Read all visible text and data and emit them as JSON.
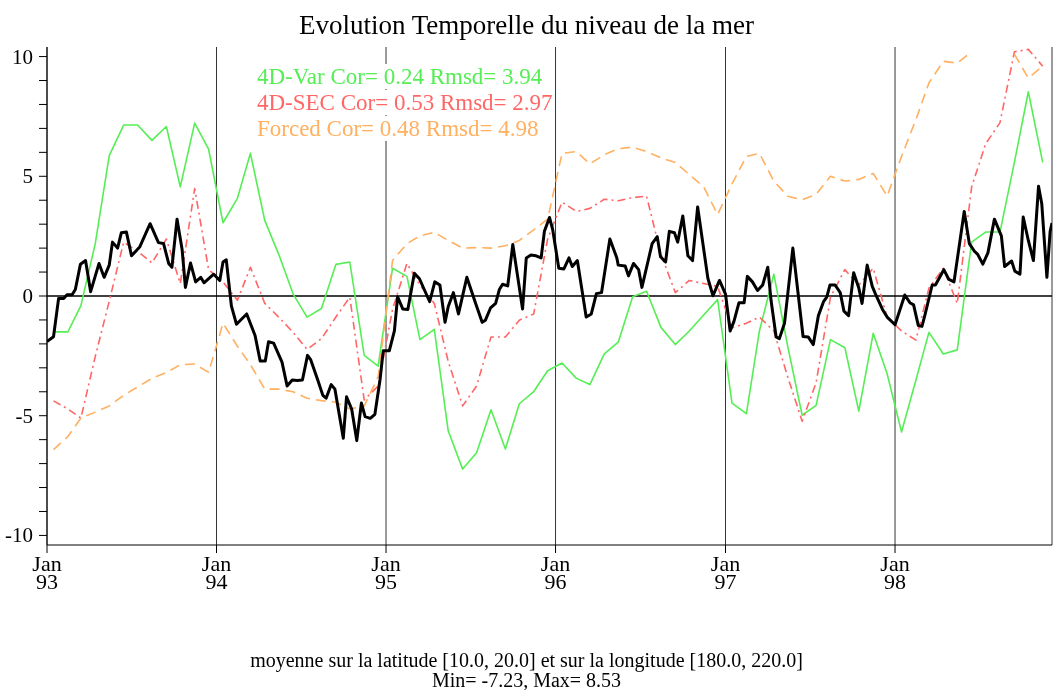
{
  "chart_data": {
    "type": "line",
    "title": "Evolution Temporelle du niveau de la mer",
    "annotations": [
      "moyenne sur la latitude [10.0, 20.0] et sur la longitude [180.0, 220.0]",
      "Min= -7.23, Max= 8.53"
    ],
    "xlim": [
      "1993-01-01",
      "1998-12-05"
    ],
    "xticks": [
      {
        "value": "1993-01-01",
        "label": "Jan 93"
      },
      {
        "value": "1994-01-01",
        "label": "Jan 94"
      },
      {
        "value": "1995-01-01",
        "label": "Jan 95"
      },
      {
        "value": "1996-01-01",
        "label": "Jan 96"
      },
      {
        "value": "1997-01-01",
        "label": "Jan 97"
      },
      {
        "value": "1998-01-01",
        "label": "Jan 98"
      }
    ],
    "ylim": [
      -10.4,
      10.4
    ],
    "yticks": [
      {
        "value": -10,
        "label": "-10"
      },
      {
        "value": -9,
        "label": null
      },
      {
        "value": -8,
        "label": null
      },
      {
        "value": -7,
        "label": null
      },
      {
        "value": -6,
        "label": null
      },
      {
        "value": -5,
        "label": "-5"
      },
      {
        "value": -4,
        "label": null
      },
      {
        "value": -3,
        "label": null
      },
      {
        "value": -2,
        "label": null
      },
      {
        "value": -1,
        "label": null
      },
      0,
      {
        "value": 1,
        "label": null
      },
      {
        "value": 2,
        "label": null
      },
      {
        "value": 3,
        "label": null
      },
      {
        "value": 4,
        "label": null
      },
      5,
      {
        "value": 6,
        "label": null
      },
      {
        "value": 7,
        "label": null
      },
      {
        "value": 8,
        "label": null
      },
      {
        "value": 9,
        "label": null
      },
      10
    ],
    "grid": "x",
    "legend": "top",
    "ref_lines": [
      {
        "axis": "y",
        "value": 0,
        "color": "#000000"
      }
    ],
    "x": [
      "1993-01-15",
      "1993-02-15",
      "1993-03-15",
      "1993-04-15",
      "1993-05-15",
      "1993-06-15",
      "1993-07-15",
      "1993-08-15",
      "1993-09-15",
      "1993-10-15",
      "1993-11-15",
      "1993-12-15",
      "1994-01-15",
      "1994-02-15",
      "1994-03-15",
      "1994-04-15",
      "1994-05-15",
      "1994-06-15",
      "1994-07-15",
      "1994-08-15",
      "1994-09-15",
      "1994-10-15",
      "1994-11-15",
      "1994-12-15",
      "1995-01-15",
      "1995-02-15",
      "1995-03-15",
      "1995-04-15",
      "1995-05-15",
      "1995-06-15",
      "1995-07-15",
      "1995-08-15",
      "1995-09-15",
      "1995-10-15",
      "1995-11-15",
      "1995-12-15",
      "1996-01-15",
      "1996-02-15",
      "1996-03-15",
      "1996-04-15",
      "1996-05-15",
      "1996-06-15",
      "1996-07-15",
      "1996-08-15",
      "1996-09-15",
      "1996-10-15",
      "1996-11-15",
      "1996-12-15",
      "1997-01-15",
      "1997-02-15",
      "1997-03-15",
      "1997-04-15",
      "1997-05-15",
      "1997-06-15",
      "1997-07-15",
      "1997-08-15",
      "1997-09-15",
      "1997-10-15",
      "1997-11-15",
      "1997-12-15",
      "1998-01-15",
      "1998-02-15",
      "1998-03-15",
      "1998-04-15",
      "1998-05-15",
      "1998-06-15",
      "1998-07-15",
      "1998-08-15",
      "1998-09-15",
      "1998-10-15",
      "1998-11-15"
    ],
    "series": [
      {
        "name": "4D-Var Cor= 0.24 Rmsd= 3.94",
        "color": "#55ee55",
        "line_style": "solid",
        "values": [
          -1.5,
          -1.5,
          -0.4,
          2.2,
          5.86,
          7.14,
          7.14,
          6.5,
          7.08,
          4.56,
          7.22,
          6.13,
          3.06,
          4.08,
          5.96,
          3.15,
          1.74,
          0.08,
          -0.88,
          -0.52,
          1.32,
          1.42,
          -2.48,
          -2.93,
          1.16,
          0.82,
          -1.82,
          -1.39,
          -5.64,
          -7.23,
          -6.55,
          -4.75,
          -6.39,
          -4.5,
          -3.99,
          -3.12,
          -2.8,
          -3.44,
          -3.7,
          -2.42,
          -1.93,
          -0.03,
          0.2,
          -1.31,
          -2.03,
          -1.46,
          -0.79,
          -0.15,
          -4.47,
          -4.91,
          -1.46,
          0.91,
          -2.1,
          -4.98,
          -4.57,
          -1.82,
          -2.16,
          -4.81,
          -1.56,
          -3.25,
          -5.68,
          -3.51,
          -1.52,
          -2.42,
          -2.25,
          2.25,
          2.67,
          2.67,
          5.58,
          8.53,
          5.58
        ]
      },
      {
        "name": "4D-SEC Cor= 0.53 Rmsd= 2.97",
        "color": "#ff6666",
        "line_style": "dashdot",
        "values": [
          -4.38,
          -4.72,
          -5.1,
          -2.52,
          -0.22,
          2.25,
          1.87,
          1.38,
          2.38,
          0.52,
          4.49,
          1.1,
          0.59,
          -0.18,
          1.2,
          -0.31,
          -0.88,
          -1.52,
          -2.23,
          -1.78,
          -0.88,
          -0.05,
          -4.34,
          -3.76,
          -0.56,
          1.36,
          0.46,
          -0.31,
          -2.74,
          -4.59,
          -3.76,
          -1.71,
          -1.71,
          -1.01,
          -0.75,
          2.38,
          3.92,
          3.53,
          3.66,
          4.04,
          3.98,
          4.11,
          4.17,
          1.74,
          0.14,
          0.65,
          0.52,
          0.4,
          -1.33,
          -1.14,
          -0.88,
          -1.46,
          -3.38,
          -5.23,
          -3.63,
          -0.05,
          1.1,
          0.46,
          1.16,
          -0.88,
          -1.46,
          -1.84,
          0.33,
          1.16,
          -0.31,
          4.56,
          6.35,
          7.24,
          10.2,
          10.3,
          9.6
        ]
      },
      {
        "name": "Forced Cor= 0.48 Rmsd= 4.98",
        "color": "#ffb060",
        "line_style": "dashed",
        "values": [
          -6.42,
          -5.87,
          -5.1,
          -4.85,
          -4.59,
          -4.15,
          -3.8,
          -3.44,
          -3.2,
          -2.87,
          -2.84,
          -3.19,
          -1.14,
          -2.1,
          -2.87,
          -3.89,
          -3.89,
          -4.0,
          -4.27,
          -4.37,
          -4.44,
          -4.72,
          -4.59,
          -3.38,
          1.48,
          2.19,
          2.51,
          2.66,
          2.32,
          2.0,
          2.02,
          2.0,
          2.1,
          2.32,
          2.76,
          3.21,
          5.96,
          6.03,
          5.52,
          5.9,
          6.15,
          6.22,
          6.03,
          5.77,
          5.58,
          5.07,
          4.56,
          3.4,
          4.68,
          5.83,
          5.96,
          4.8,
          4.17,
          4.02,
          4.24,
          5.0,
          4.8,
          4.87,
          5.12,
          4.17,
          5.83,
          7.37,
          8.9,
          9.8,
          9.73,
          10.2,
          null,
          null,
          10.1,
          9.1,
          9.6
        ]
      },
      {
        "color": "#000000",
        "line_style": "solid",
        "x": [
          "1993-01-01",
          "1993-01-15",
          "1993-01-26",
          "1993-02-06",
          "1993-02-13",
          "1993-02-24",
          "1993-03-03",
          "1993-03-14",
          "1993-03-25",
          "1993-04-05",
          "1993-04-23",
          "1993-05-04",
          "1993-05-15",
          "1993-05-22",
          "1993-06-02",
          "1993-06-10",
          "1993-06-21",
          "1993-07-02",
          "1993-07-20",
          "1993-08-11",
          "1993-08-29",
          "1993-09-09",
          "1993-09-20",
          "1993-09-27",
          "1993-10-08",
          "1993-10-19",
          "1993-10-26",
          "1993-11-06",
          "1993-11-17",
          "1993-11-28",
          "1993-12-05",
          "1993-12-26",
          "1994-01-08",
          "1994-01-15",
          "1994-01-22",
          "1994-02-02",
          "1994-02-13",
          "1994-03-07",
          "1994-03-25",
          "1994-04-05",
          "1994-04-16",
          "1994-04-23",
          "1994-05-04",
          "1994-05-22",
          "1994-06-02",
          "1994-06-13",
          "1994-06-24",
          "1994-07-05",
          "1994-07-16",
          "1994-07-23",
          "1994-08-07",
          "1994-08-18",
          "1994-08-25",
          "1994-09-05",
          "1994-09-13",
          "1994-10-01",
          "1994-10-08",
          "1994-10-19",
          "1994-10-30",
          "1994-11-09",
          "1994-11-17",
          "1994-11-28",
          "1994-12-08",
          "1994-12-19",
          "1994-12-26",
          "1995-01-08",
          "1995-01-19",
          "1995-01-26",
          "1995-02-06",
          "1995-02-17",
          "1995-03-03",
          "1995-03-14",
          "1995-04-05",
          "1995-04-16",
          "1995-04-27",
          "1995-05-08",
          "1995-05-15",
          "1995-05-26",
          "1995-06-06",
          "1995-06-24",
          "1995-07-13",
          "1995-07-27",
          "1995-08-03",
          "1995-08-14",
          "1995-08-25",
          "1995-09-02",
          "1995-09-09",
          "1995-09-20",
          "1995-10-01",
          "1995-10-22",
          "1995-10-30",
          "1995-11-09",
          "1995-11-20",
          "1995-12-01",
          "1995-12-08",
          "1995-12-19",
          "1995-12-26",
          "1996-01-08",
          "1996-01-19",
          "1996-01-30",
          "1996-02-06",
          "1996-02-17",
          "1996-03-07",
          "1996-03-18",
          "1996-03-29",
          "1996-04-09",
          "1996-04-27",
          "1996-05-12",
          "1996-05-15",
          "1996-05-30",
          "1996-06-06",
          "1996-06-17",
          "1996-06-28",
          "1996-07-05",
          "1996-07-27",
          "1996-08-07",
          "1996-08-14",
          "1996-08-25",
          "1996-09-02",
          "1996-09-13",
          "1996-09-20",
          "1996-10-01",
          "1996-10-12",
          "1996-10-22",
          "1996-11-02",
          "1996-11-24",
          "1996-12-05",
          "1996-12-19",
          "1997-01-01",
          "1997-01-11",
          "1997-01-19",
          "1997-01-30",
          "1997-02-10",
          "1997-02-17",
          "1997-02-28",
          "1997-03-11",
          "1997-03-22",
          "1997-04-02",
          "1997-04-09",
          "1997-04-20",
          "1997-04-27",
          "1997-05-08",
          "1997-05-26",
          "1997-06-17",
          "1997-06-28",
          "1997-07-09",
          "1997-07-20",
          "1997-07-31",
          "1997-08-07",
          "1997-08-14",
          "1997-08-25",
          "1997-09-05",
          "1997-09-13",
          "1997-09-23",
          "1997-10-04",
          "1997-10-15",
          "1997-10-22",
          "1997-11-02",
          "1997-11-13",
          "1997-11-20",
          "1997-12-05",
          "1997-12-15",
          "1998-01-01",
          "1998-01-22",
          "1998-02-02",
          "1998-02-10",
          "1998-02-20",
          "1998-02-28",
          "1998-03-07",
          "1998-03-22",
          "1998-03-29",
          "1998-04-16",
          "1998-04-27",
          "1998-05-08",
          "1998-05-30",
          "1998-06-10",
          "1998-06-21",
          "1998-06-28",
          "1998-07-09",
          "1998-07-20",
          "1998-08-03",
          "1998-08-18",
          "1998-08-25",
          "1998-09-09",
          "1998-09-16",
          "1998-09-27",
          "1998-10-04",
          "1998-10-15",
          "1998-10-26",
          "1998-11-06",
          "1998-11-13",
          "1998-11-24",
          "1998-12-01",
          "1998-12-05"
        ],
        "values": [
          -1.9,
          -1.7,
          -0.1,
          -0.1,
          0.05,
          0.05,
          0.27,
          1.33,
          1.48,
          0.18,
          1.36,
          0.78,
          1.29,
          2.25,
          2.0,
          2.64,
          2.67,
          1.68,
          2.06,
          3.02,
          2.23,
          2.19,
          1.36,
          1.2,
          3.21,
          1.93,
          0.36,
          1.38,
          0.59,
          0.78,
          0.55,
          0.91,
          0.65,
          1.42,
          1.51,
          -0.41,
          -1.18,
          -0.75,
          -1.65,
          -2.71,
          -2.71,
          -1.91,
          -1.97,
          -2.76,
          -3.76,
          -3.51,
          -3.53,
          -3.51,
          -2.48,
          -2.67,
          -3.51,
          -4.15,
          -4.27,
          -3.7,
          -3.89,
          -5.94,
          -4.21,
          -4.72,
          -6.04,
          -4.47,
          -5.04,
          -5.11,
          -4.94,
          -3.51,
          -2.29,
          -2.29,
          -1.46,
          -0.03,
          -0.54,
          -0.56,
          0.95,
          0.72,
          -0.24,
          0.59,
          0.46,
          -1.1,
          -0.44,
          0.14,
          -0.75,
          0.78,
          -0.31,
          -1.1,
          -1.01,
          -0.5,
          -0.31,
          0.27,
          0.49,
          0.42,
          2.15,
          -0.54,
          1.59,
          1.71,
          1.68,
          1.59,
          2.7,
          3.28,
          2.76,
          1.16,
          1.13,
          1.59,
          1.23,
          1.48,
          -0.88,
          -0.75,
          0.1,
          0.14,
          2.38,
          1.59,
          1.29,
          1.25,
          0.84,
          1.36,
          1.1,
          0.36,
          2.19,
          2.48,
          1.64,
          1.42,
          2.7,
          2.64,
          2.25,
          3.34,
          1.68,
          1.48,
          3.72,
          0.74,
          0.01,
          0.65,
          0.08,
          -1.46,
          -1.07,
          -0.28,
          -0.28,
          0.82,
          0.59,
          0.23,
          0.46,
          1.2,
          -0.18,
          -1.71,
          -1.78,
          -1.14,
          2.0,
          -1.69,
          -1.71,
          -2.03,
          -0.82,
          -0.24,
          -0.05,
          0.46,
          0.46,
          0.14,
          -0.63,
          -0.82,
          0.97,
          0.33,
          -0.31,
          1.29,
          0.4,
          0.08,
          -0.56,
          -0.88,
          -1.2,
          0.04,
          -0.28,
          -0.37,
          -1.23,
          -1.27,
          -0.75,
          0.46,
          0.46,
          1.1,
          0.69,
          0.59,
          3.53,
          2.19,
          1.87,
          1.74,
          1.33,
          1.8,
          3.21,
          2.51,
          1.23,
          1.46,
          1.04,
          0.91,
          3.3,
          2.32,
          1.48,
          4.58,
          3.85,
          0.78,
          2.7,
          3.05
        ]
      }
    ]
  }
}
